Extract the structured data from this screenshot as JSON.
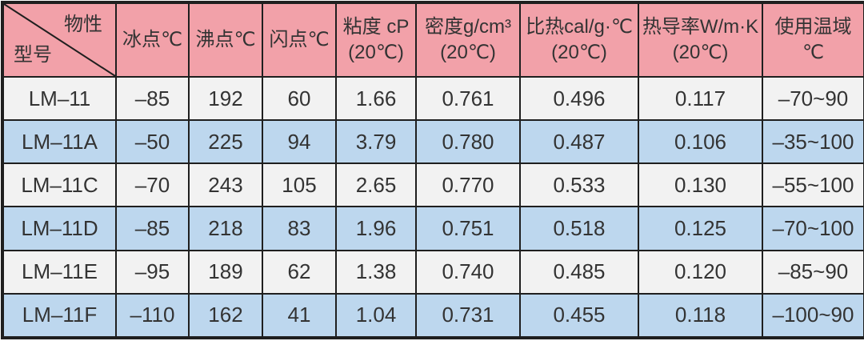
{
  "table": {
    "corner": {
      "top_right": "物性",
      "bottom_left": "型号"
    },
    "columns": [
      {
        "line1": "冰点℃",
        "line2": ""
      },
      {
        "line1": "沸点℃",
        "line2": ""
      },
      {
        "line1": "闪点℃",
        "line2": ""
      },
      {
        "line1": "粘度 cP",
        "line2": "(20℃)"
      },
      {
        "line1": "密度g/cm³",
        "line2": "(20℃)"
      },
      {
        "line1": "比热cal/g·℃",
        "line2": "(20℃)"
      },
      {
        "line1": "热导率W/m·K",
        "line2": "(20℃)"
      },
      {
        "line1": "使用温域",
        "line2": "℃"
      }
    ],
    "rows": [
      {
        "model": "LM–11",
        "values": [
          "–85",
          "192",
          "60",
          "1.66",
          "0.761",
          "0.496",
          "0.117",
          "–70~90"
        ]
      },
      {
        "model": "LM–11A",
        "values": [
          "–50",
          "225",
          "94",
          "3.79",
          "0.780",
          "0.487",
          "0.106",
          "–35~100"
        ]
      },
      {
        "model": "LM–11C",
        "values": [
          "–70",
          "243",
          "105",
          "2.65",
          "0.770",
          "0.533",
          "0.130",
          "–55~100"
        ]
      },
      {
        "model": "LM–11D",
        "values": [
          "–85",
          "218",
          "83",
          "1.96",
          "0.751",
          "0.518",
          "0.125",
          "–70~100"
        ]
      },
      {
        "model": "LM–11E",
        "values": [
          "–95",
          "189",
          "62",
          "1.38",
          "0.740",
          "0.485",
          "0.120",
          "–85~90"
        ]
      },
      {
        "model": "LM–11F",
        "values": [
          "–110",
          "162",
          "41",
          "1.04",
          "0.731",
          "0.455",
          "0.118",
          "–100~90"
        ]
      }
    ],
    "colors": {
      "header_bg": "#F2A1A9",
      "row_white_bg": "#F2F2F2",
      "row_blue_bg": "#BDD7EE",
      "border": "#1F1F1F",
      "text": "#333333"
    }
  }
}
